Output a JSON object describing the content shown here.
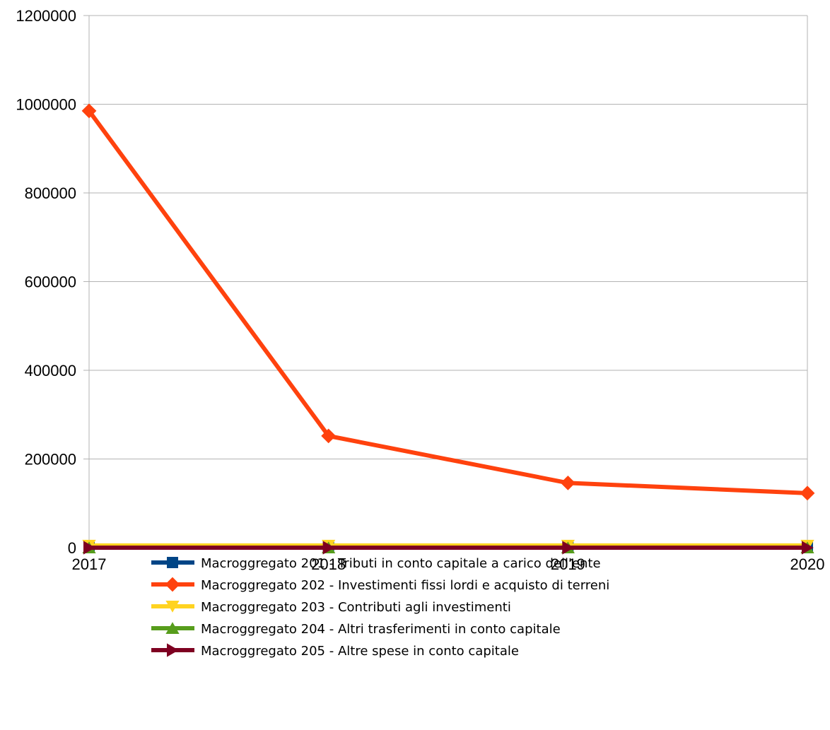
{
  "chart_data": {
    "type": "line",
    "title": "",
    "xlabel": "",
    "ylabel": "",
    "x": [
      "2017",
      "2018",
      "2019",
      "2020"
    ],
    "ylim": [
      0,
      1200000
    ],
    "yticks": [
      0,
      200000,
      400000,
      600000,
      800000,
      1000000,
      1200000
    ],
    "ytick_labels": [
      "0",
      "200000",
      "400000",
      "600000",
      "800000",
      "1000000",
      "1200000"
    ],
    "grid": true,
    "legend_position": "bottom",
    "series": [
      {
        "name": "Macroggregato 201 - Tributi in conto capitale a carico dell'ente",
        "values": [
          0,
          0,
          0,
          0
        ],
        "color": "#004586",
        "marker": "square"
      },
      {
        "name": "Macroggregato 202 - Investimenti fissi lordi e acquisto di terreni",
        "values": [
          985000,
          252000,
          146000,
          123000
        ],
        "color": "#ff420e",
        "marker": "diamond"
      },
      {
        "name": "Macroggregato 203 - Contributi agli investimenti",
        "values": [
          5000,
          5000,
          5000,
          5000
        ],
        "color": "#ffd320",
        "marker": "triangle-down"
      },
      {
        "name": "Macroggregato 204 - Altri trasferimenti in conto capitale",
        "values": [
          0,
          0,
          0,
          0
        ],
        "color": "#579d1c",
        "marker": "triangle-up"
      },
      {
        "name": "Macroggregato 205 - Altre spese in conto capitale",
        "values": [
          0,
          0,
          0,
          0
        ],
        "color": "#7e0021",
        "marker": "triangle-right"
      }
    ]
  }
}
